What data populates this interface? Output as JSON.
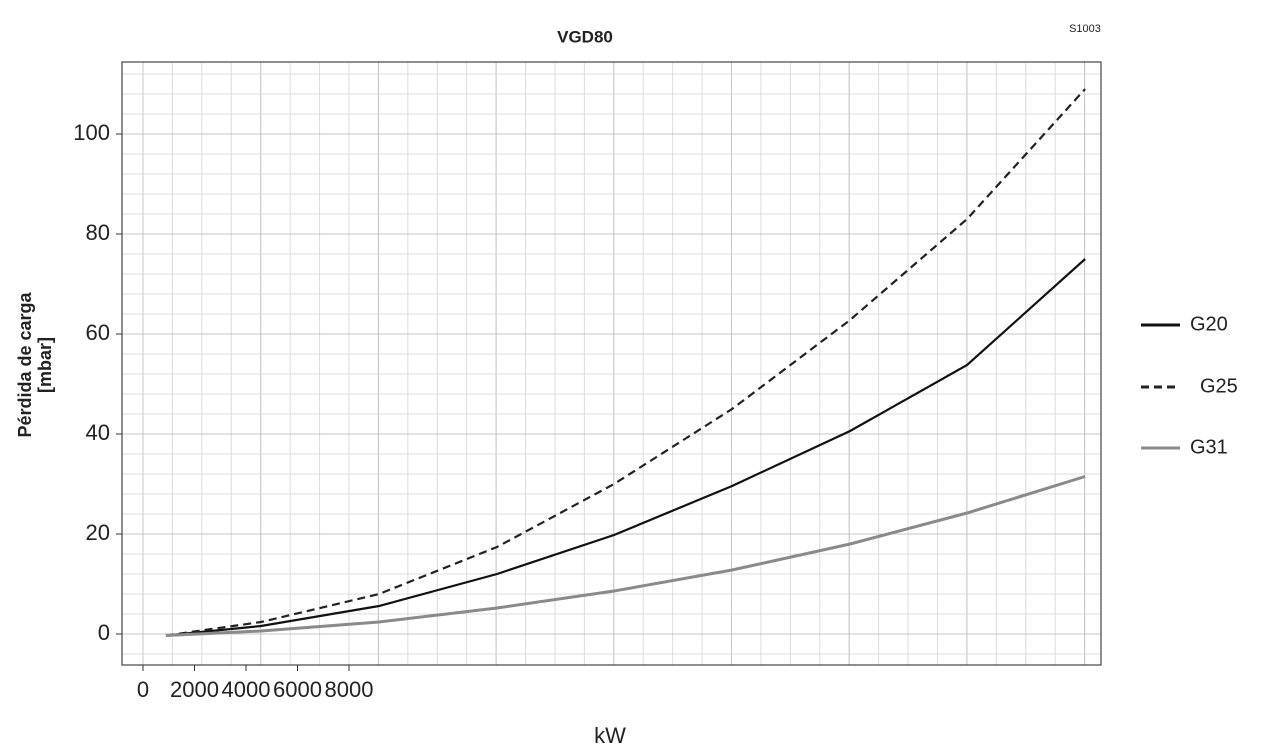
{
  "chart_data": {
    "type": "line",
    "title": "VGD80",
    "code": "S1003",
    "ylabel": [
      "Pérdida de carga",
      "[mbar]"
    ],
    "xlabel": "kW",
    "x": [
      893,
      4583,
      9165,
      13748,
      18291,
      22874,
      27456,
      32000,
      36583
    ],
    "series": [
      {
        "name": "G20",
        "color": "#111111",
        "dash": false,
        "values": [
          -0.3,
          1.6,
          5.6,
          12,
          19.8,
          29.6,
          40.6,
          53.8,
          75
        ]
      },
      {
        "name": "G25",
        "color": "#222222",
        "dash": true,
        "values": [
          -0.3,
          2.4,
          8,
          17.4,
          30,
          45,
          62.8,
          83,
          109
        ]
      },
      {
        "name": "G31",
        "color": "#8a8a8a",
        "dash": false,
        "values": [
          -0.3,
          0.6,
          2.4,
          5.2,
          8.6,
          12.8,
          18,
          24.2,
          31.5
        ]
      }
    ],
    "xlim": [
      -815,
      37200
    ],
    "xticks": [
      0,
      2000,
      4000,
      6000,
      8000
    ],
    "ylim": [
      -6.2,
      114.4
    ],
    "yticks": [
      0,
      20,
      40,
      60,
      80,
      100
    ],
    "grid": true
  }
}
